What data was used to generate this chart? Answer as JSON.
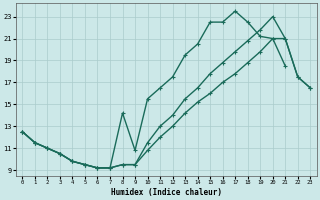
{
  "bg_color": "#cce8e8",
  "grid_color": "#aacccc",
  "line_color": "#1a6b5a",
  "xlabel": "Humidex (Indice chaleur)",
  "xlim": [
    -0.5,
    23.5
  ],
  "ylim": [
    8.5,
    24.2
  ],
  "yticks": [
    9,
    11,
    13,
    15,
    17,
    19,
    21,
    23
  ],
  "curve1_x": [
    0,
    1,
    2,
    3,
    4,
    5,
    6,
    7,
    8,
    9,
    10,
    11,
    12,
    13,
    14,
    15,
    16,
    17,
    18,
    19,
    20,
    21
  ],
  "curve1_y": [
    12.5,
    11.5,
    11.0,
    10.5,
    9.8,
    9.5,
    9.2,
    9.2,
    14.2,
    10.8,
    15.5,
    16.5,
    17.5,
    19.5,
    20.5,
    22.5,
    22.5,
    23.5,
    22.5,
    21.2,
    21.0,
    18.5
  ],
  "curve2_x": [
    0,
    1,
    2,
    3,
    4,
    5,
    6,
    7,
    8,
    9,
    10,
    11,
    12,
    13,
    14,
    15,
    16,
    17,
    18,
    19,
    20,
    21,
    22,
    23
  ],
  "curve2_y": [
    12.5,
    11.5,
    11.0,
    10.5,
    9.8,
    9.5,
    9.2,
    9.2,
    9.5,
    9.5,
    10.8,
    12.0,
    13.0,
    14.2,
    15.2,
    16.0,
    17.0,
    17.8,
    18.8,
    19.8,
    21.0,
    21.0,
    17.5,
    16.5
  ],
  "curve3_x": [
    0,
    1,
    2,
    3,
    4,
    5,
    6,
    7,
    8,
    9,
    10,
    11,
    12,
    13,
    14,
    15,
    16,
    17,
    18,
    19,
    20,
    21,
    22,
    23
  ],
  "curve3_y": [
    12.5,
    11.5,
    11.0,
    10.5,
    9.8,
    9.5,
    9.2,
    9.2,
    9.5,
    9.5,
    11.5,
    13.0,
    14.0,
    15.5,
    16.5,
    17.8,
    18.8,
    19.8,
    20.8,
    21.8,
    23.0,
    21.0,
    17.5,
    16.5
  ]
}
